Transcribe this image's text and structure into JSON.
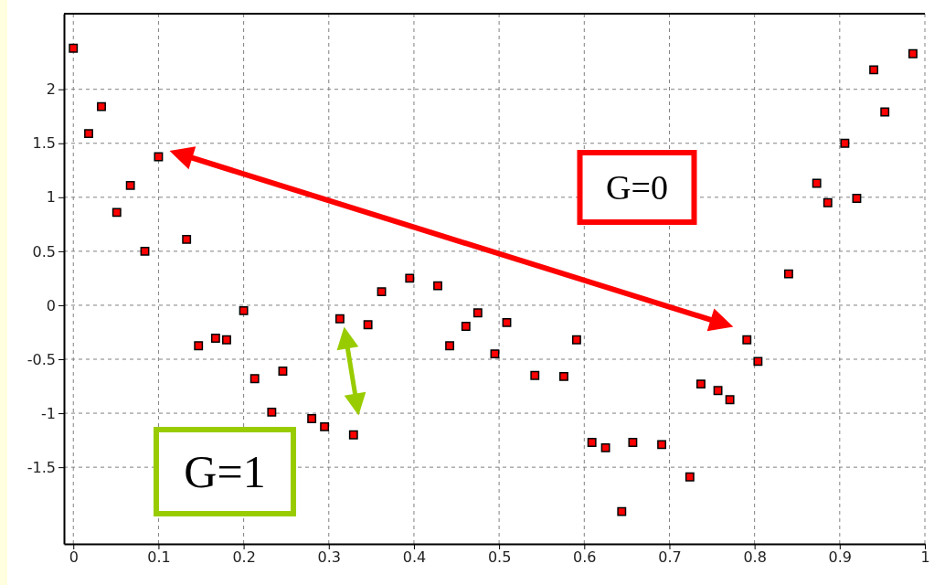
{
  "chart_data": {
    "type": "scatter",
    "marker": "square",
    "grid": true,
    "xlim": [
      -0.011,
      1.0
    ],
    "ylim": [
      -2.21,
      2.7
    ],
    "xticks": [
      0,
      0.1,
      0.2,
      0.3,
      0.4,
      0.5,
      0.6,
      0.7,
      0.8,
      0.9,
      1
    ],
    "yticks": [
      -1.5,
      -1,
      -0.5,
      0,
      0.5,
      1,
      1.5,
      2
    ],
    "annotations": [
      "G=0",
      "G=1"
    ],
    "series": [
      {
        "color": "#ff0000",
        "x": [
          0,
          0.018,
          0.033,
          0.051,
          0.067,
          0.084,
          0.1,
          0.133,
          0.147,
          0.167,
          0.18,
          0.2,
          0.213,
          0.233,
          0.246,
          0.28,
          0.295,
          0.313,
          0.329,
          0.346,
          0.362,
          0.395,
          0.428,
          0.442,
          0.461,
          0.475,
          0.495,
          0.509,
          0.542,
          0.576,
          0.591,
          0.609,
          0.625,
          0.644,
          0.657,
          0.691,
          0.724,
          0.737,
          0.757,
          0.771,
          0.791,
          0.804,
          0.84,
          0.873,
          0.886,
          0.906,
          0.92,
          0.94,
          0.953,
          0.986
        ],
        "values": [
          2.38,
          1.59,
          1.84,
          0.86,
          1.11,
          0.5,
          1.375,
          0.61,
          -0.375,
          -0.305,
          -0.32,
          -0.05,
          -0.68,
          -0.99,
          -0.61,
          -1.05,
          -1.125,
          -0.125,
          -1.2,
          -0.18,
          0.125,
          0.25,
          0.18,
          -0.375,
          -0.195,
          -0.07,
          -0.45,
          -0.16,
          -0.65,
          -0.66,
          -0.32,
          -1.27,
          -1.32,
          -1.91,
          -1.27,
          -1.29,
          -1.59,
          -0.73,
          -0.79,
          -0.875,
          -0.32,
          -0.52,
          0.29,
          1.13,
          0.95,
          1.5,
          0.99,
          2.18,
          1.79,
          2.33
        ]
      }
    ]
  }
}
